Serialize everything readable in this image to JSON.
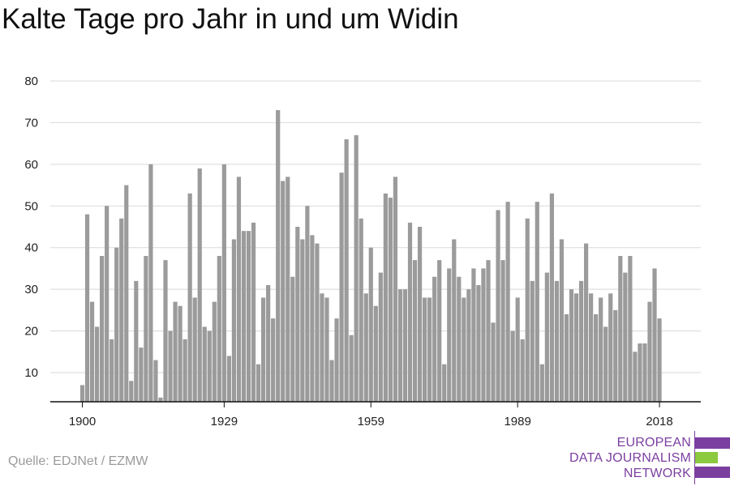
{
  "title": "Kalte Tage pro Jahr in und um Widin",
  "source": "Quelle: EDJNet / EZMW",
  "logo": {
    "line1": "EUROPEAN",
    "line2": "DATA JOURNALISM",
    "line3": "NETWORK",
    "colors": {
      "purple": "#7b3fa0",
      "green": "#8bc93f"
    }
  },
  "colors": {
    "bar": "#9b9b9b",
    "grid": "#d9d9d9",
    "axis": "#111111"
  },
  "chart_data": {
    "type": "bar",
    "title": "Kalte Tage pro Jahr in und um Widin",
    "xlabel": "",
    "ylabel": "",
    "ylim": [
      3,
      80
    ],
    "yticks": [
      10,
      20,
      30,
      40,
      50,
      60,
      70,
      80
    ],
    "xticks": [
      1900,
      1929,
      1959,
      1989,
      2018
    ],
    "grid": true,
    "legend": "none",
    "x": [
      1900,
      1901,
      1902,
      1903,
      1904,
      1905,
      1906,
      1907,
      1908,
      1909,
      1910,
      1911,
      1912,
      1913,
      1914,
      1915,
      1916,
      1917,
      1918,
      1919,
      1920,
      1921,
      1922,
      1923,
      1924,
      1925,
      1926,
      1927,
      1928,
      1929,
      1930,
      1931,
      1932,
      1933,
      1934,
      1935,
      1936,
      1937,
      1938,
      1939,
      1940,
      1941,
      1942,
      1943,
      1944,
      1945,
      1946,
      1947,
      1948,
      1949,
      1950,
      1951,
      1952,
      1953,
      1954,
      1955,
      1956,
      1957,
      1958,
      1959,
      1960,
      1961,
      1962,
      1963,
      1964,
      1965,
      1966,
      1967,
      1968,
      1969,
      1970,
      1971,
      1972,
      1973,
      1974,
      1975,
      1976,
      1977,
      1978,
      1979,
      1980,
      1981,
      1982,
      1983,
      1984,
      1985,
      1986,
      1987,
      1988,
      1989,
      1990,
      1991,
      1992,
      1993,
      1994,
      1995,
      1996,
      1997,
      1998,
      1999,
      2000,
      2001,
      2002,
      2003,
      2004,
      2005,
      2006,
      2007,
      2008,
      2009,
      2010,
      2011,
      2012,
      2013,
      2014,
      2015,
      2016,
      2017,
      2018
    ],
    "values": [
      7,
      48,
      27,
      21,
      38,
      50,
      18,
      40,
      47,
      55,
      8,
      32,
      16,
      38,
      60,
      13,
      4,
      37,
      20,
      27,
      26,
      18,
      53,
      28,
      59,
      21,
      20,
      27,
      38,
      60,
      14,
      42,
      57,
      44,
      44,
      46,
      12,
      28,
      31,
      23,
      73,
      56,
      57,
      33,
      45,
      42,
      50,
      43,
      41,
      29,
      28,
      13,
      23,
      58,
      66,
      19,
      67,
      47,
      29,
      40,
      26,
      34,
      53,
      52,
      57,
      30,
      30,
      46,
      37,
      45,
      28,
      28,
      33,
      37,
      12,
      35,
      42,
      33,
      28,
      30,
      35,
      31,
      35,
      37,
      22,
      49,
      37,
      51,
      20,
      28,
      18,
      47,
      32,
      51,
      12,
      34,
      53,
      32,
      42,
      24,
      30,
      29,
      32,
      41,
      29,
      24,
      28,
      21,
      29,
      25,
      38,
      34,
      38,
      15,
      17,
      17,
      27,
      35,
      23
    ]
  }
}
